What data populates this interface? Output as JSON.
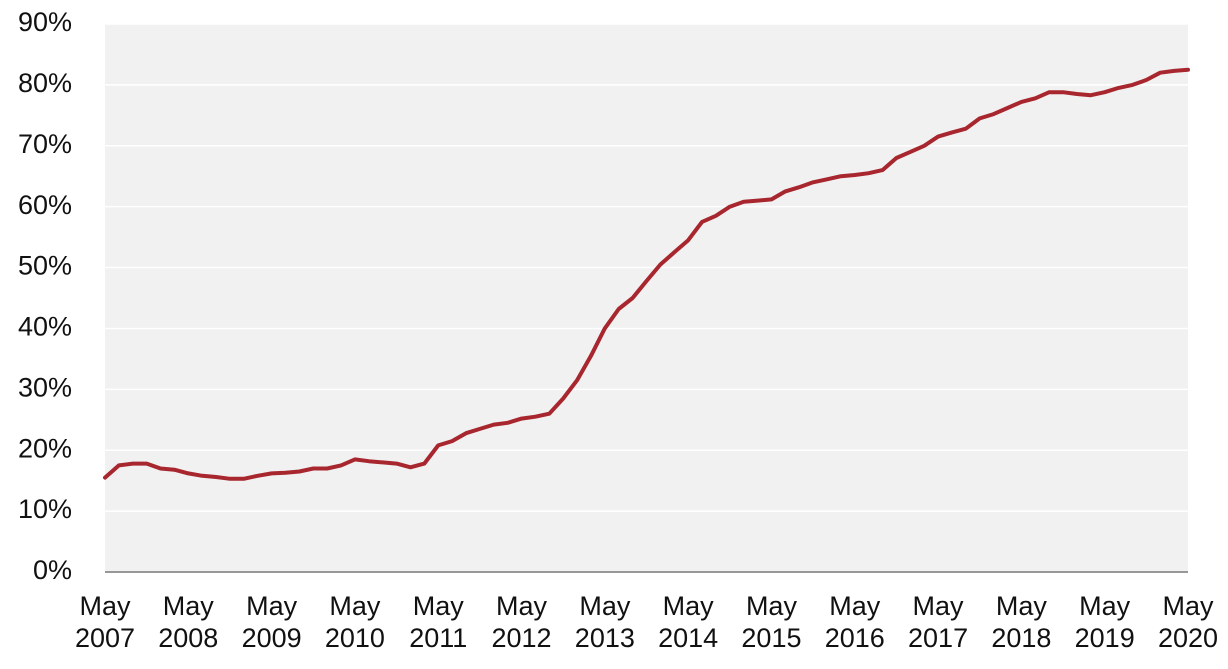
{
  "chart_data": {
    "type": "line",
    "categories": [
      "May 2007",
      null,
      null,
      null,
      null,
      null,
      "May 2008",
      null,
      null,
      null,
      null,
      null,
      "May 2009",
      null,
      null,
      null,
      null,
      null,
      "May 2010",
      null,
      null,
      null,
      null,
      null,
      "May 2011",
      null,
      null,
      null,
      null,
      null,
      "May 2012",
      null,
      null,
      null,
      null,
      null,
      "May 2013",
      null,
      null,
      null,
      null,
      null,
      "May 2014",
      null,
      null,
      null,
      null,
      null,
      "May 2015",
      null,
      null,
      null,
      null,
      null,
      "May 2016",
      null,
      null,
      null,
      null,
      null,
      "May 2017",
      null,
      null,
      null,
      null,
      null,
      "May 2018",
      null,
      null,
      null,
      null,
      null,
      "May 2019",
      null,
      null,
      null,
      null,
      null,
      "May 2020"
    ],
    "values": [
      15.5,
      17.5,
      17.8,
      17.8,
      17.0,
      16.8,
      16.2,
      15.8,
      15.6,
      15.3,
      15.3,
      15.8,
      16.2,
      16.3,
      16.5,
      17.0,
      17.0,
      17.5,
      18.5,
      18.2,
      18.0,
      17.8,
      17.2,
      17.8,
      20.8,
      21.5,
      22.8,
      23.5,
      24.2,
      24.5,
      25.2,
      25.5,
      26.0,
      28.5,
      31.5,
      35.5,
      40.0,
      43.2,
      45.0,
      47.8,
      50.5,
      52.5,
      54.5,
      57.5,
      58.5,
      60.0,
      60.8,
      61.0,
      61.2,
      62.5,
      63.2,
      64.0,
      64.5,
      65.0,
      65.2,
      65.5,
      66.0,
      68.0,
      69.0,
      70.0,
      71.5,
      72.2,
      72.8,
      74.5,
      75.2,
      76.2,
      77.2,
      77.8,
      78.8,
      78.8,
      78.5,
      78.3,
      78.8,
      79.5,
      80.0,
      80.8,
      82.0,
      82.3,
      82.5
    ],
    "color": "#a8262e",
    "ylim": [
      0,
      90
    ],
    "yticks": [
      {
        "value": 0,
        "label": "0%"
      },
      {
        "value": 10,
        "label": "10%"
      },
      {
        "value": 20,
        "label": "20%"
      },
      {
        "value": 30,
        "label": "30%"
      },
      {
        "value": 40,
        "label": "40%"
      },
      {
        "value": 50,
        "label": "50%"
      },
      {
        "value": 60,
        "label": "60%"
      },
      {
        "value": 70,
        "label": "70%"
      },
      {
        "value": 80,
        "label": "80%"
      },
      {
        "value": 90,
        "label": "90%"
      }
    ],
    "grid": true
  }
}
